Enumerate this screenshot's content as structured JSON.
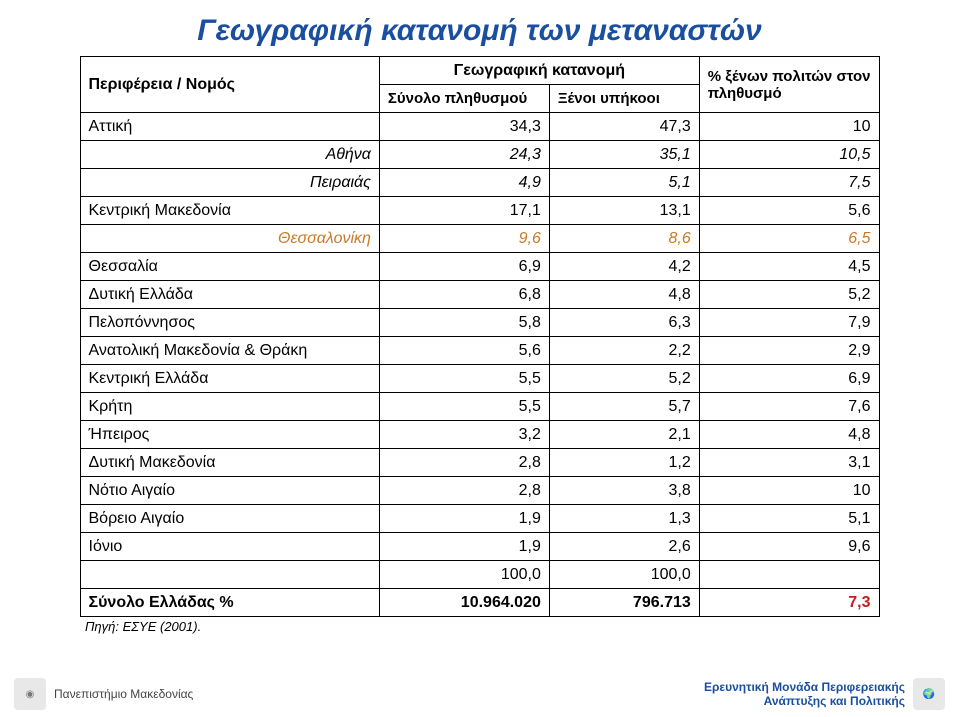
{
  "title": "Γεωγραφική κατανομή των μεταναστών",
  "table": {
    "col_header_region": "Περιφέρεια / Νομός",
    "col_header_geo": "Γεωγραφική κατανομή",
    "col_header_total": "Σύνολο πληθυσμού",
    "col_header_foreign": "Ξένοι υπήκοοι",
    "col_header_pct": "% ξένων πολιτών στον πληθυσμό",
    "rows": [
      {
        "label": "Αττική",
        "total": "34,3",
        "foreign": "47,3",
        "pct": "10",
        "italic": false,
        "orange": false
      },
      {
        "label": "Αθήνα",
        "total": "24,3",
        "foreign": "35,1",
        "pct": "10,5",
        "italic": true,
        "orange": false
      },
      {
        "label": "Πειραιάς",
        "total": "4,9",
        "foreign": "5,1",
        "pct": "7,5",
        "italic": true,
        "orange": false
      },
      {
        "label": "Κεντρική Μακεδονία",
        "total": "17,1",
        "foreign": "13,1",
        "pct": "5,6",
        "italic": false,
        "orange": false
      },
      {
        "label": "Θεσσαλονίκη",
        "total": "9,6",
        "foreign": "8,6",
        "pct": "6,5",
        "italic": true,
        "orange": true
      },
      {
        "label": "Θεσσαλία",
        "total": "6,9",
        "foreign": "4,2",
        "pct": "4,5",
        "italic": false,
        "orange": false
      },
      {
        "label": "Δυτική Ελλάδα",
        "total": "6,8",
        "foreign": "4,8",
        "pct": "5,2",
        "italic": false,
        "orange": false
      },
      {
        "label": "Πελοπόννησος",
        "total": "5,8",
        "foreign": "6,3",
        "pct": "7,9",
        "italic": false,
        "orange": false
      },
      {
        "label": "Ανατολική Μακεδονία & Θράκη",
        "total": "5,6",
        "foreign": "2,2",
        "pct": "2,9",
        "italic": false,
        "orange": false
      },
      {
        "label": "Κεντρική Ελλάδα",
        "total": "5,5",
        "foreign": "5,2",
        "pct": "6,9",
        "italic": false,
        "orange": false
      },
      {
        "label": "Κρήτη",
        "total": "5,5",
        "foreign": "5,7",
        "pct": "7,6",
        "italic": false,
        "orange": false
      },
      {
        "label": "Ήπειρος",
        "total": "3,2",
        "foreign": "2,1",
        "pct": "4,8",
        "italic": false,
        "orange": false
      },
      {
        "label": "Δυτική Μακεδονία",
        "total": "2,8",
        "foreign": "1,2",
        "pct": "3,1",
        "italic": false,
        "orange": false
      },
      {
        "label": "Νότιο Αιγαίο",
        "total": "2,8",
        "foreign": "3,8",
        "pct": "10",
        "italic": false,
        "orange": false
      },
      {
        "label": "Βόρειο Αιγαίο",
        "total": "1,9",
        "foreign": "1,3",
        "pct": "5,1",
        "italic": false,
        "orange": false
      },
      {
        "label": "Ιόνιο",
        "total": "1,9",
        "foreign": "2,6",
        "pct": "9,6",
        "italic": false,
        "orange": false
      }
    ],
    "subtotal": {
      "total": "100,0",
      "foreign": "100,0"
    },
    "totals": {
      "label": "Σύνολο Ελλάδας %",
      "total": "10.964.020",
      "foreign": "796.713",
      "pct": "7,3"
    }
  },
  "colors": {
    "title": "#1a4fa0",
    "orange": "#c87a2a",
    "totals_pct": "#c02020"
  },
  "source": "Πηγή: ΕΣΥΕ (2001).",
  "footer": {
    "left": "Πανεπιστήμιο Μακεδονίας",
    "right_l1": "Ερευνητική Μονάδα Περιφερειακής",
    "right_l2": "Ανάπτυξης και Πολιτικής"
  }
}
